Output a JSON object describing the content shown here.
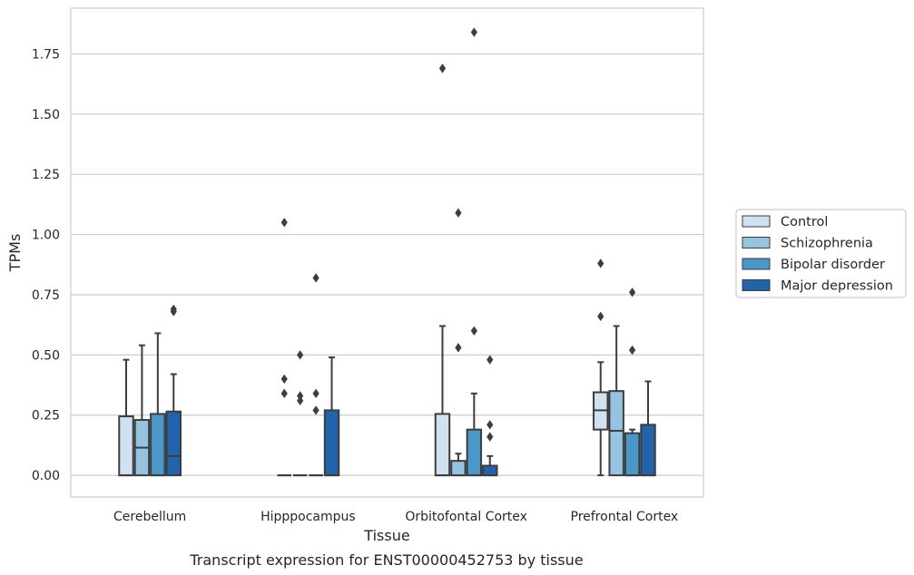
{
  "chart_data": {
    "type": "box",
    "title": "",
    "caption": "Transcript expression for ENST00000452753 by tissue",
    "xlabel": "Tissue",
    "ylabel": "TPMs",
    "ylim": [
      -0.09,
      1.94
    ],
    "yticks": [
      0.0,
      0.25,
      0.5,
      0.75,
      1.0,
      1.25,
      1.5,
      1.75
    ],
    "ytick_labels": [
      "0.00",
      "0.25",
      "0.50",
      "0.75",
      "1.00",
      "1.25",
      "1.50",
      "1.75"
    ],
    "grid": "horizontal",
    "legend_position": "right",
    "categories": [
      "Cerebellum",
      "Hipppocampus",
      "Orbitofontal Cortex",
      "Prefrontal Cortex"
    ],
    "series": [
      {
        "name": "Control",
        "color": "#d0e1f2",
        "boxes": [
          {
            "whislo": 0.0,
            "q1": 0.0,
            "med": 0.0,
            "q3": 0.245,
            "whishi": 0.48,
            "fliers": []
          },
          {
            "whislo": 0.0,
            "q1": 0.0,
            "med": 0.0,
            "q3": 0.0,
            "whishi": 0.0,
            "fliers": [
              0.34,
              0.4,
              1.05
            ]
          },
          {
            "whislo": 0.0,
            "q1": 0.0,
            "med": 0.0,
            "q3": 0.255,
            "whishi": 0.62,
            "fliers": [
              1.69
            ]
          },
          {
            "whislo": 0.0,
            "q1": 0.19,
            "med": 0.27,
            "q3": 0.345,
            "whishi": 0.47,
            "fliers": [
              0.66,
              0.88
            ]
          }
        ]
      },
      {
        "name": "Schizophrenia",
        "color": "#94c4df",
        "boxes": [
          {
            "whislo": 0.0,
            "q1": 0.0,
            "med": 0.115,
            "q3": 0.23,
            "whishi": 0.54,
            "fliers": []
          },
          {
            "whislo": 0.0,
            "q1": 0.0,
            "med": 0.0,
            "q3": 0.0,
            "whishi": 0.0,
            "fliers": [
              0.31,
              0.33,
              0.5
            ]
          },
          {
            "whislo": 0.0,
            "q1": 0.0,
            "med": 0.0,
            "q3": 0.06,
            "whishi": 0.09,
            "fliers": [
              0.53,
              1.09
            ]
          },
          {
            "whislo": 0.0,
            "q1": 0.0,
            "med": 0.185,
            "q3": 0.35,
            "whishi": 0.62,
            "fliers": []
          }
        ]
      },
      {
        "name": "Bipolar disorder",
        "color": "#4a98c9",
        "boxes": [
          {
            "whislo": 0.0,
            "q1": 0.0,
            "med": 0.0,
            "q3": 0.255,
            "whishi": 0.59,
            "fliers": []
          },
          {
            "whislo": 0.0,
            "q1": 0.0,
            "med": 0.0,
            "q3": 0.0,
            "whishi": 0.0,
            "fliers": [
              0.27,
              0.34,
              0.82
            ]
          },
          {
            "whislo": 0.0,
            "q1": 0.0,
            "med": 0.0,
            "q3": 0.19,
            "whishi": 0.34,
            "fliers": [
              0.6,
              1.84
            ]
          },
          {
            "whislo": 0.0,
            "q1": 0.0,
            "med": 0.0,
            "q3": 0.175,
            "whishi": 0.19,
            "fliers": [
              0.52,
              0.76
            ]
          }
        ]
      },
      {
        "name": "Major depression",
        "color": "#2164ab",
        "boxes": [
          {
            "whislo": 0.0,
            "q1": 0.0,
            "med": 0.08,
            "q3": 0.265,
            "whishi": 0.42,
            "fliers": [
              0.68,
              0.69
            ]
          },
          {
            "whislo": 0.0,
            "q1": 0.0,
            "med": 0.0,
            "q3": 0.27,
            "whishi": 0.49,
            "fliers": []
          },
          {
            "whislo": 0.0,
            "q1": 0.0,
            "med": 0.0,
            "q3": 0.04,
            "whishi": 0.08,
            "fliers": [
              0.16,
              0.21,
              0.48
            ]
          },
          {
            "whislo": 0.0,
            "q1": 0.0,
            "med": 0.0,
            "q3": 0.21,
            "whishi": 0.39,
            "fliers": []
          }
        ]
      }
    ]
  }
}
